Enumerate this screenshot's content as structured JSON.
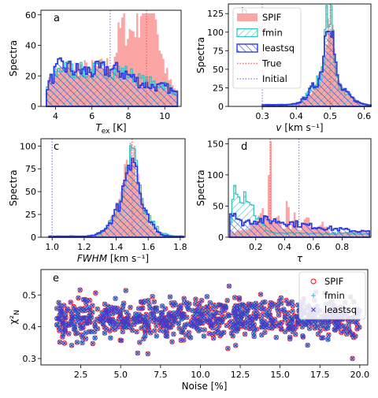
{
  "colors": {
    "spif": "#fba5a5",
    "fmin": "#2ec4c0",
    "leastsq": "#2a3de3",
    "true_line": "#f06868",
    "initial_line": "#8c8cf0",
    "scatter_spif": "#ff0000",
    "scatter_fmin": "#20b8d8",
    "scatter_leastsq": "#4a36c8"
  },
  "chart_data": [
    {
      "id": "a",
      "panel_label": "a",
      "type": "histogram",
      "xlabel": "T",
      "xlabel_sub": "ex",
      "xlabel_unit": " [K]",
      "ylabel": "Spectra",
      "xlim": [
        3.2,
        10.9
      ],
      "ylim": [
        0,
        63
      ],
      "xticks": [
        4,
        6,
        8,
        10
      ],
      "xtick_labels": [
        "4",
        "6",
        "8",
        "10"
      ],
      "yticks": [
        0,
        20,
        40,
        60
      ],
      "ytick_labels": [
        "0",
        "20",
        "40",
        "60"
      ],
      "true_value": 9.0,
      "initial_value": 7.0,
      "bin_range": [
        3.5,
        10.7
      ],
      "series": [
        {
          "name": "SPIF",
          "style": "fill",
          "centers": [
            4,
            5,
            6,
            7,
            7.6,
            8.1,
            8.5,
            8.85,
            9.1,
            9.4,
            9.8,
            10.3
          ],
          "amps": [
            15,
            18,
            15,
            19,
            28,
            35,
            27,
            40,
            54,
            45,
            22,
            8
          ],
          "widths": [
            0.4,
            0.5,
            0.5,
            0.5,
            0.25,
            0.3,
            0.2,
            0.2,
            0.2,
            0.2,
            0.25,
            0.3
          ],
          "base": 5
        },
        {
          "name": "fmin",
          "style": "hatch-cyan",
          "centers": [
            4.2,
            5.2,
            6.3,
            7.3,
            8.2,
            9.2,
            10.1
          ],
          "amps": [
            15,
            13,
            12,
            13,
            9,
            8,
            6
          ],
          "widths": [
            0.5,
            0.6,
            0.6,
            0.6,
            0.5,
            0.5,
            0.4
          ],
          "base": 6
        },
        {
          "name": "leastsq",
          "style": "hatch-blue",
          "centers": [
            4.2,
            5.2,
            6.3,
            7.3,
            8.2,
            9.2,
            10.1
          ],
          "amps": [
            16,
            13,
            12,
            13,
            8,
            6,
            5
          ],
          "widths": [
            0.5,
            0.6,
            0.6,
            0.6,
            0.5,
            0.5,
            0.4
          ],
          "base": 6
        }
      ]
    },
    {
      "id": "b",
      "panel_label": "b",
      "type": "histogram",
      "xlabel": "v",
      "xlabel_sub": "",
      "xlabel_unit": " [km s⁻¹]",
      "ylabel": "Spectra",
      "xlim": [
        0.2,
        0.62
      ],
      "ylim": [
        0,
        138
      ],
      "xticks": [
        0.3,
        0.4,
        0.5,
        0.6
      ],
      "xtick_labels": [
        "0.3",
        "0.4",
        "0.5",
        "0.6"
      ],
      "yticks": [
        0,
        25,
        50,
        75,
        100,
        125
      ],
      "ytick_labels": [
        "0",
        "25",
        "50",
        "75",
        "100",
        "125"
      ],
      "true_value": 0.5,
      "initial_value": 0.3,
      "bin_range": [
        0.3,
        0.62
      ],
      "series": [
        {
          "name": "SPIF",
          "style": "fill",
          "centers": [
            0.497,
            0.47,
            0.53
          ],
          "amps": [
            95,
            28,
            18
          ],
          "widths": [
            0.012,
            0.03,
            0.03
          ],
          "base": 2
        },
        {
          "name": "fmin",
          "style": "hatch-cyan",
          "centers": [
            0.497,
            0.47,
            0.53
          ],
          "amps": [
            98,
            30,
            18
          ],
          "widths": [
            0.012,
            0.03,
            0.03
          ],
          "base": 2
        },
        {
          "name": "leastsq",
          "style": "hatch-blue",
          "centers": [
            0.497,
            0.47,
            0.53
          ],
          "amps": [
            100,
            30,
            18
          ],
          "widths": [
            0.012,
            0.03,
            0.03
          ],
          "base": 2
        }
      ]
    },
    {
      "id": "c",
      "panel_label": "c",
      "type": "histogram",
      "xlabel": "FWHM",
      "xlabel_sub": "",
      "xlabel_unit": " [km s⁻¹]",
      "ylabel": "Spectra",
      "xlim": [
        0.93,
        1.83
      ],
      "ylim": [
        0,
        108
      ],
      "xticks": [
        1.0,
        1.2,
        1.4,
        1.6,
        1.8
      ],
      "xtick_labels": [
        "1.0",
        "1.2",
        "1.4",
        "1.6",
        "1.8"
      ],
      "yticks": [
        0,
        25,
        50,
        75,
        100
      ],
      "ytick_labels": [
        "0",
        "25",
        "50",
        "75",
        "100"
      ],
      "true_value": 1.5,
      "initial_value": 1.0,
      "bin_range": [
        0.98,
        1.82
      ],
      "series": [
        {
          "name": "SPIF",
          "style": "fill",
          "centers": [
            1.495,
            1.44,
            1.56
          ],
          "amps": [
            60,
            30,
            20
          ],
          "widths": [
            0.035,
            0.07,
            0.06
          ],
          "base": 1
        },
        {
          "name": "fmin",
          "style": "hatch-cyan",
          "centers": [
            1.495,
            1.44,
            1.56
          ],
          "amps": [
            58,
            30,
            22
          ],
          "widths": [
            0.035,
            0.07,
            0.07
          ],
          "base": 1
        },
        {
          "name": "leastsq",
          "style": "hatch-blue",
          "centers": [
            1.495,
            1.44,
            1.56
          ],
          "amps": [
            60,
            30,
            20
          ],
          "widths": [
            0.035,
            0.07,
            0.06
          ],
          "base": 1
        }
      ]
    },
    {
      "id": "d",
      "panel_label": "d",
      "type": "histogram",
      "xlabel": "τ",
      "xlabel_sub": "",
      "xlabel_unit": "",
      "ylabel": "Spectra",
      "xlim": [
        0.01,
        1.0
      ],
      "ylim": [
        0,
        158
      ],
      "xticks": [
        0.2,
        0.4,
        0.6,
        0.8
      ],
      "xtick_labels": [
        "0.2",
        "0.4",
        "0.6",
        "0.8"
      ],
      "yticks": [
        0,
        50,
        100,
        150
      ],
      "ytick_labels": [
        "0",
        "50",
        "100",
        "150"
      ],
      "true_value": 0.3,
      "initial_value": 0.5,
      "bin_range": [
        0.02,
        0.99
      ],
      "series": [
        {
          "name": "SPIF",
          "style": "fill",
          "centers": [
            0.3,
            0.27,
            0.35,
            0.42,
            0.47,
            0.55,
            0.65,
            0.2
          ],
          "amps": [
            125,
            30,
            25,
            45,
            40,
            25,
            15,
            15
          ],
          "widths": [
            0.008,
            0.03,
            0.02,
            0.01,
            0.01,
            0.02,
            0.03,
            0.05
          ],
          "base": 8
        },
        {
          "name": "fmin",
          "style": "hatch-cyan",
          "centers": [
            0.06,
            0.12,
            0.18
          ],
          "amps": [
            65,
            50,
            25
          ],
          "widths": [
            0.02,
            0.04,
            0.06
          ],
          "base": 6
        },
        {
          "name": "leastsq",
          "style": "hatch-blue",
          "centers": [
            0.04,
            0.2,
            0.5
          ],
          "amps": [
            25,
            15,
            10
          ],
          "widths": [
            0.02,
            0.2,
            0.3
          ],
          "base": 6
        }
      ]
    },
    {
      "id": "e",
      "panel_label": "e",
      "type": "scatter",
      "xlabel": "Noise [%]",
      "ylabel": "χ²",
      "ylabel_sub": "N",
      "xlim": [
        0.0,
        20.5
      ],
      "ylim": [
        0.28,
        0.58
      ],
      "xticks": [
        2.5,
        5.0,
        7.5,
        10.0,
        12.5,
        15.0,
        17.5,
        20.0
      ],
      "xtick_labels": [
        "2.5",
        "5.0",
        "7.5",
        "10.0",
        "12.5",
        "15.0",
        "17.5",
        "20.0"
      ],
      "yticks": [
        0.3,
        0.4,
        0.5
      ],
      "ytick_labels": [
        "0.3",
        "0.4",
        "0.5"
      ],
      "noise_range": [
        1.0,
        20.0
      ],
      "n_points": 900,
      "series": [
        {
          "name": "SPIF",
          "marker": "o"
        },
        {
          "name": "fmin",
          "marker": "+"
        },
        {
          "name": "leastsq",
          "marker": "x"
        }
      ]
    }
  ],
  "legend_top": {
    "items": [
      {
        "label": "SPIF",
        "kind": "fill"
      },
      {
        "label": "fmin",
        "kind": "hatch-cyan"
      },
      {
        "label": "leastsq",
        "kind": "hatch-blue"
      },
      {
        "label": "True",
        "kind": "line-true"
      },
      {
        "label": "Initial",
        "kind": "line-initial"
      }
    ]
  },
  "legend_scatter": {
    "items": [
      {
        "label": "SPIF",
        "kind": "o"
      },
      {
        "label": "fmin",
        "kind": "+"
      },
      {
        "label": "leastsq",
        "kind": "x"
      }
    ]
  }
}
